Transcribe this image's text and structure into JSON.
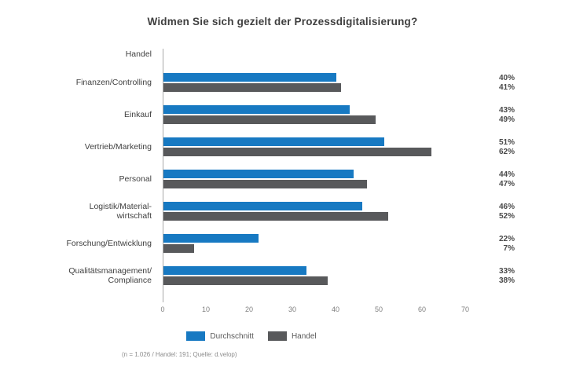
{
  "title": "Widmen Sie sich gezielt der Prozessdigitalisierung?",
  "header_label": "Handel",
  "colors": {
    "series_durchschnitt": "#1779c2",
    "series_handel": "#58595b",
    "axis_line": "#a9a9a9",
    "text_primary": "#404040",
    "text_secondary": "#7f7f7f"
  },
  "chart_data": {
    "type": "bar",
    "orientation": "horizontal",
    "title": "Widmen Sie sich gezielt der Prozessdigitalisierung?",
    "categories": [
      "Finanzen/Controlling",
      "Einkauf",
      "Vertrieb/Marketing",
      "Personal",
      "Logistik/Material-\nwirtschaft",
      "Forschung/Entwicklung",
      "Qualitätsmanagement/\nCompliance"
    ],
    "series": [
      {
        "name": "Durchschnitt",
        "color": "#1779c2",
        "values": [
          40,
          43,
          51,
          44,
          46,
          22,
          33
        ]
      },
      {
        "name": "Handel",
        "color": "#58595b",
        "values": [
          41,
          49,
          62,
          47,
          52,
          7,
          38
        ]
      }
    ],
    "value_labels": [
      [
        "40%",
        "41%"
      ],
      [
        "43%",
        "49%"
      ],
      [
        "51%",
        "62%"
      ],
      [
        "44%",
        "47%"
      ],
      [
        "46%",
        "52%"
      ],
      [
        "22%",
        "7%"
      ],
      [
        "33%",
        "38%"
      ]
    ],
    "xlabel": "",
    "ylabel": "",
    "xlim": [
      0,
      70
    ],
    "ticks": [
      0,
      10,
      20,
      30,
      40,
      50,
      60,
      70
    ],
    "grid": false,
    "legend_position": "bottom"
  },
  "legend": {
    "items": [
      {
        "label": "Durchschnitt",
        "color": "#1779c2"
      },
      {
        "label": "Handel",
        "color": "#58595b"
      }
    ]
  },
  "footnote": "(n = 1.026 / Handel: 191; Quelle: d.velop)"
}
